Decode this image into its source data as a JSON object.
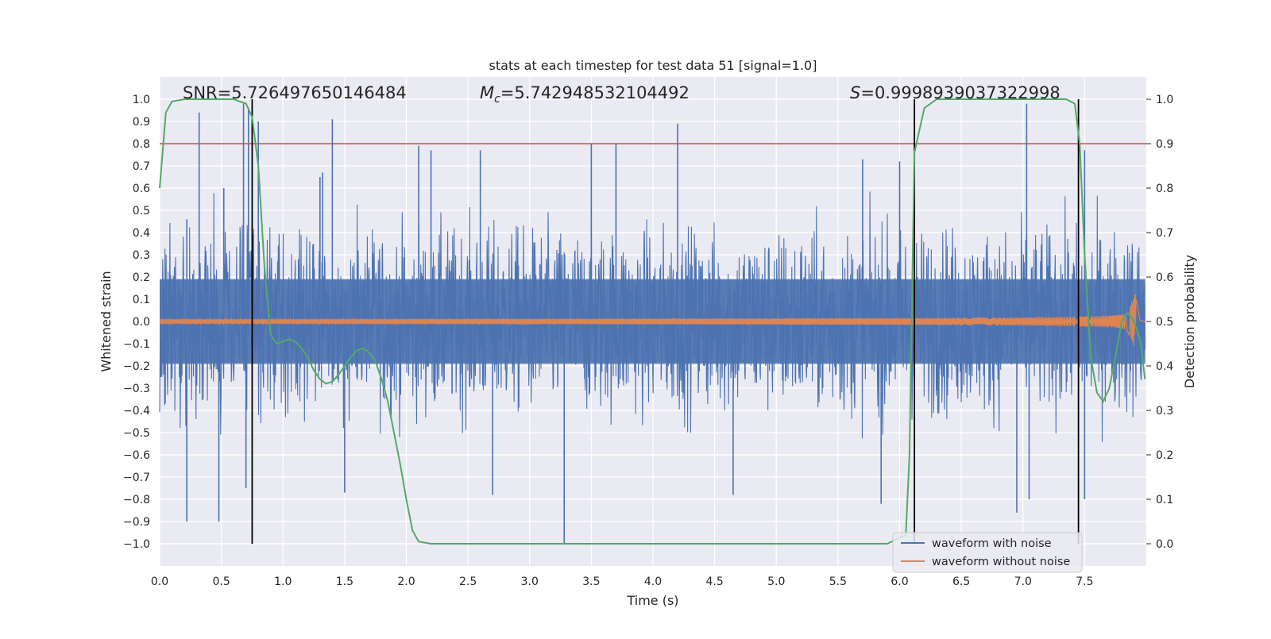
{
  "chart_data": {
    "type": "line",
    "title": "stats at each timestep for test data 51 [signal=1.0]",
    "xlabel": "Time (s)",
    "ylabel": "Whitened strain",
    "ylabel_right": "Detection probability",
    "xlim": [
      0.0,
      8.0
    ],
    "ylim": [
      -1.1,
      1.1
    ],
    "ylim_right": [
      -0.05,
      1.05
    ],
    "x_ticks": [
      "0.0",
      "0.5",
      "1.0",
      "1.5",
      "2.0",
      "2.5",
      "3.0",
      "3.5",
      "4.0",
      "4.5",
      "5.0",
      "5.5",
      "6.0",
      "6.5",
      "7.0",
      "7.5"
    ],
    "y_ticks": [
      "1.0",
      "0.9",
      "0.8",
      "0.7",
      "0.6",
      "0.5",
      "0.4",
      "0.3",
      "0.2",
      "0.1",
      "0.0",
      "−0.1",
      "−0.2",
      "−0.3",
      "−0.4",
      "−0.5",
      "−0.6",
      "−0.7",
      "−0.8",
      "−0.9",
      "−1.0"
    ],
    "y_right_ticks": [
      "1.0",
      "0.9",
      "0.8",
      "0.7",
      "0.6",
      "0.5",
      "0.4",
      "0.3",
      "0.2",
      "0.1",
      "0.0"
    ],
    "grid": true,
    "legend_position": "bottom-right",
    "annotations": {
      "snr": "SNR=5.726497650146484",
      "mc_symbol": "M",
      "mc_sub": "c",
      "mc_value": "=5.742948532104492",
      "s_symbol": "S",
      "s_value": "=0.9998939037322998"
    },
    "threshold": 0.9,
    "vertical_markers": [
      0.75,
      6.12,
      7.45
    ],
    "series": [
      {
        "name": "waveform with noise",
        "color": "#4c72b0",
        "note": "dense noisy strain, amplitude mostly within ±0.6, peaks near ±1.0",
        "peaks": [
          [
            0.22,
            0.46
          ],
          [
            0.32,
            0.94
          ],
          [
            0.52,
            0.6
          ],
          [
            0.68,
            0.98
          ],
          [
            0.72,
            0.95
          ],
          [
            0.8,
            0.9
          ],
          [
            1.3,
            0.65
          ],
          [
            1.32,
            0.67
          ],
          [
            1.4,
            0.91
          ],
          [
            2.1,
            0.79
          ],
          [
            2.2,
            0.77
          ],
          [
            2.6,
            0.77
          ],
          [
            3.5,
            0.8
          ],
          [
            3.7,
            0.8
          ],
          [
            4.2,
            0.89
          ],
          [
            5.7,
            0.73
          ],
          [
            6.0,
            0.72
          ],
          [
            7.03,
            0.98
          ],
          [
            7.5,
            0.77
          ],
          [
            0.22,
            -0.9
          ],
          [
            0.48,
            -0.9
          ],
          [
            0.7,
            -0.75
          ],
          [
            1.5,
            -0.77
          ],
          [
            2.7,
            -0.78
          ],
          [
            3.28,
            -1.0
          ],
          [
            4.65,
            -0.78
          ],
          [
            5.85,
            -0.82
          ],
          [
            6.95,
            -0.86
          ],
          [
            7.05,
            -0.8
          ],
          [
            7.5,
            -0.8
          ]
        ]
      },
      {
        "name": "waveform without noise",
        "color": "#dd8452",
        "note": "chirp whose envelope grows from ~0.01 to ~0.13 at merger near t≈7.9 s"
      },
      {
        "name": "detection probability",
        "color": "#55a868",
        "axis": "right",
        "x": [
          0.0,
          0.05,
          0.1,
          0.2,
          0.3,
          0.4,
          0.5,
          0.6,
          0.65,
          0.7,
          0.75,
          0.8,
          0.85,
          0.9,
          0.95,
          1.0,
          1.05,
          1.1,
          1.15,
          1.2,
          1.25,
          1.3,
          1.35,
          1.4,
          1.45,
          1.5,
          1.55,
          1.6,
          1.65,
          1.7,
          1.75,
          1.8,
          1.85,
          1.9,
          1.95,
          2.0,
          2.05,
          2.1,
          2.2,
          3.0,
          4.0,
          5.0,
          5.9,
          6.05,
          6.08,
          6.12,
          6.2,
          6.3,
          6.4,
          7.2,
          7.35,
          7.42,
          7.46,
          7.5,
          7.55,
          7.6,
          7.65,
          7.7,
          7.75,
          7.8,
          7.85,
          7.9,
          7.95,
          7.99
        ],
        "y": [
          0.8,
          0.97,
          0.995,
          1.0,
          1.0,
          1.0,
          1.0,
          1.0,
          0.995,
          0.99,
          0.96,
          0.85,
          0.62,
          0.47,
          0.45,
          0.455,
          0.46,
          0.455,
          0.44,
          0.42,
          0.39,
          0.37,
          0.36,
          0.365,
          0.38,
          0.4,
          0.42,
          0.435,
          0.44,
          0.43,
          0.41,
          0.37,
          0.32,
          0.25,
          0.18,
          0.1,
          0.03,
          0.005,
          0.0,
          0.0,
          0.0,
          0.0,
          0.0,
          0.02,
          0.2,
          0.88,
          0.98,
          1.0,
          1.0,
          1.0,
          1.0,
          0.99,
          0.9,
          0.65,
          0.42,
          0.34,
          0.32,
          0.35,
          0.42,
          0.5,
          0.52,
          0.5,
          0.46,
          0.37
        ]
      },
      {
        "name": "threshold",
        "color": "#c44e52",
        "axis": "right"
      }
    ]
  }
}
